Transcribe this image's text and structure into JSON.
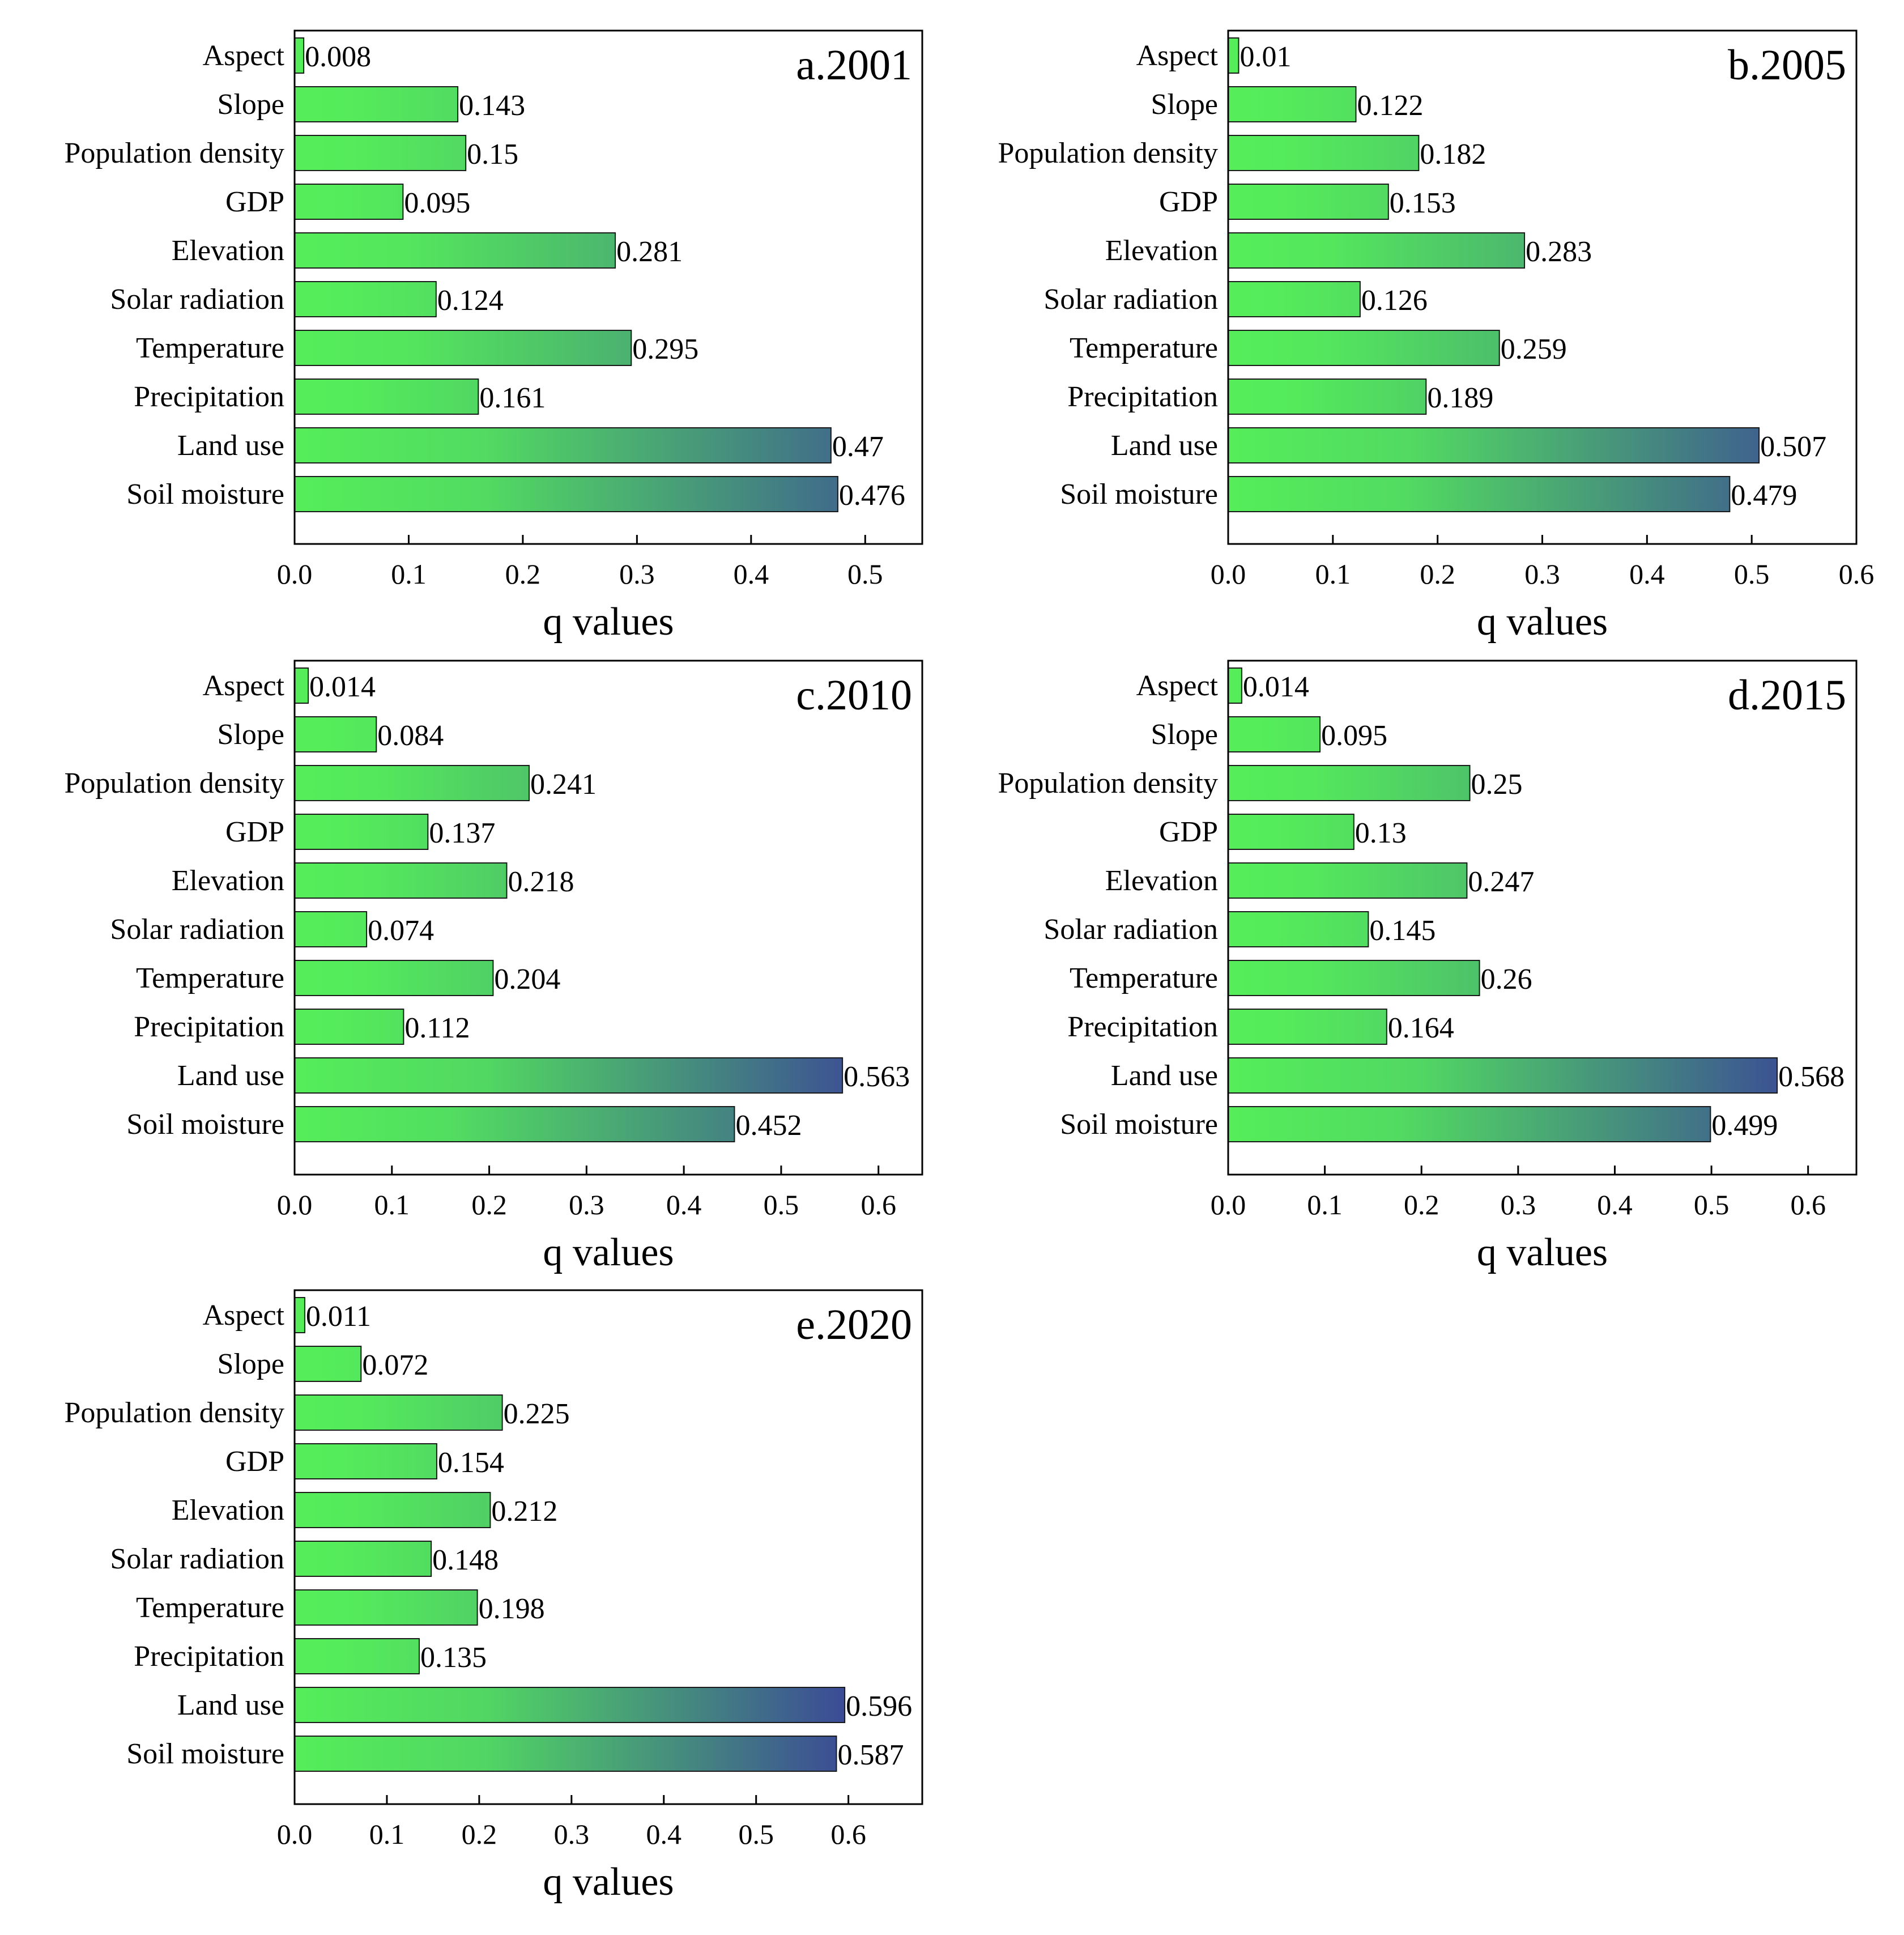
{
  "colors": {
    "bar_low": "#55ee5a",
    "bar_high": "#3b4a96",
    "axis": "#000000",
    "background": "#ffffff"
  },
  "chart_data": [
    {
      "type": "bar",
      "orientation": "horizontal",
      "panel_label": "a.2001",
      "xlabel": "q values",
      "xlim": [
        0,
        0.55
      ],
      "xticks": [
        "0.0",
        "0.1",
        "0.2",
        "0.3",
        "0.4",
        "0.5"
      ],
      "categories": [
        "Aspect",
        "Slope",
        "Population density",
        "GDP",
        "Elevation",
        "Solar radiation",
        "Temperature",
        "Precipitation",
        "Land use",
        "Soil moisture"
      ],
      "values": [
        0.008,
        0.143,
        0.15,
        0.095,
        0.281,
        0.124,
        0.295,
        0.161,
        0.47,
        0.476
      ],
      "value_labels": [
        "0.008",
        "0.143",
        "0.15",
        "0.095",
        "0.281",
        "0.124",
        "0.295",
        "0.161",
        "0.47",
        "0.476"
      ]
    },
    {
      "type": "bar",
      "orientation": "horizontal",
      "panel_label": "b.2005",
      "xlabel": "q values",
      "xlim": [
        0,
        0.6
      ],
      "xticks": [
        "0.0",
        "0.1",
        "0.2",
        "0.3",
        "0.4",
        "0.5",
        "0.6"
      ],
      "categories": [
        "Aspect",
        "Slope",
        "Population density",
        "GDP",
        "Elevation",
        "Solar radiation",
        "Temperature",
        "Precipitation",
        "Land use",
        "Soil moisture"
      ],
      "values": [
        0.01,
        0.122,
        0.182,
        0.153,
        0.283,
        0.126,
        0.259,
        0.189,
        0.507,
        0.479
      ],
      "value_labels": [
        "0.01",
        "0.122",
        "0.182",
        "0.153",
        "0.283",
        "0.126",
        "0.259",
        "0.189",
        "0.507",
        "0.479"
      ]
    },
    {
      "type": "bar",
      "orientation": "horizontal",
      "panel_label": "c.2010",
      "xlabel": "q values",
      "xlim": [
        0,
        0.645
      ],
      "xticks": [
        "0.0",
        "0.1",
        "0.2",
        "0.3",
        "0.4",
        "0.5",
        "0.6"
      ],
      "categories": [
        "Aspect",
        "Slope",
        "Population density",
        "GDP",
        "Elevation",
        "Solar radiation",
        "Temperature",
        "Precipitation",
        "Land use",
        "Soil moisture"
      ],
      "values": [
        0.014,
        0.084,
        0.241,
        0.137,
        0.218,
        0.074,
        0.204,
        0.112,
        0.563,
        0.452
      ],
      "value_labels": [
        "0.014",
        "0.084",
        "0.241",
        "0.137",
        "0.218",
        "0.074",
        "0.204",
        "0.112",
        "0.563",
        "0.452"
      ]
    },
    {
      "type": "bar",
      "orientation": "horizontal",
      "panel_label": "d.2015",
      "xlabel": "q values",
      "xlim": [
        0,
        0.65
      ],
      "xticks": [
        "0.0",
        "0.1",
        "0.2",
        "0.3",
        "0.4",
        "0.5",
        "0.6"
      ],
      "categories": [
        "Aspect",
        "Slope",
        "Population density",
        "GDP",
        "Elevation",
        "Solar radiation",
        "Temperature",
        "Precipitation",
        "Land use",
        "Soil moisture"
      ],
      "values": [
        0.014,
        0.095,
        0.25,
        0.13,
        0.247,
        0.145,
        0.26,
        0.164,
        0.568,
        0.499
      ],
      "value_labels": [
        "0.014",
        "0.095",
        "0.25",
        "0.13",
        "0.247",
        "0.145",
        "0.26",
        "0.164",
        "0.568",
        "0.499"
      ]
    },
    {
      "type": "bar",
      "orientation": "horizontal",
      "panel_label": "e.2020",
      "xlabel": "q values",
      "xlim": [
        0,
        0.68
      ],
      "xticks": [
        "0.0",
        "0.1",
        "0.2",
        "0.3",
        "0.4",
        "0.5",
        "0.6"
      ],
      "categories": [
        "Aspect",
        "Slope",
        "Population density",
        "GDP",
        "Elevation",
        "Solar radiation",
        "Temperature",
        "Precipitation",
        "Land use",
        "Soil moisture"
      ],
      "values": [
        0.011,
        0.072,
        0.225,
        0.154,
        0.212,
        0.148,
        0.198,
        0.135,
        0.596,
        0.587
      ],
      "value_labels": [
        "0.011",
        "0.072",
        "0.225",
        "0.154",
        "0.212",
        "0.148",
        "0.198",
        "0.135",
        "0.596",
        "0.587"
      ]
    }
  ]
}
